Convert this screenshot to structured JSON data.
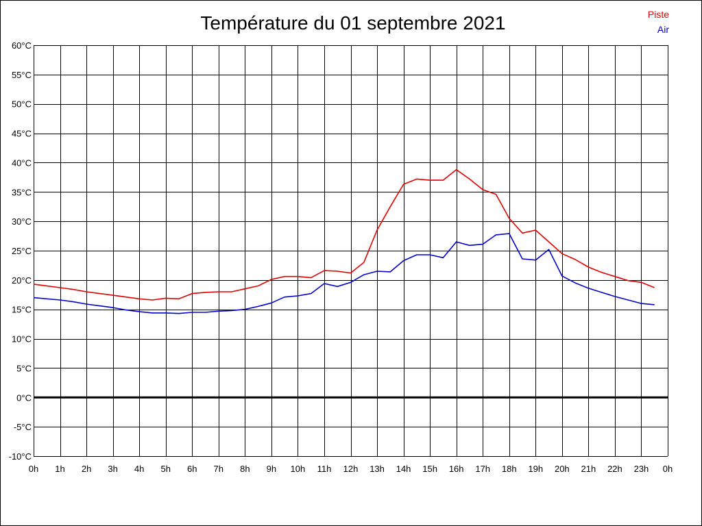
{
  "chart_data": {
    "type": "line",
    "title": "Température du 01 septembre 2021",
    "x_tick_labels": [
      "0h",
      "1h",
      "2h",
      "3h",
      "4h",
      "5h",
      "6h",
      "7h",
      "8h",
      "9h",
      "10h",
      "11h",
      "12h",
      "13h",
      "14h",
      "15h",
      "16h",
      "17h",
      "18h",
      "19h",
      "20h",
      "21h",
      "22h",
      "23h",
      "0h"
    ],
    "y_tick_labels": [
      "-10°C",
      "-5°C",
      "0°C",
      "5°C",
      "10°C",
      "15°C",
      "20°C",
      "25°C",
      "30°C",
      "35°C",
      "40°C",
      "45°C",
      "50°C",
      "55°C",
      "60°C"
    ],
    "xlim": [
      0,
      24
    ],
    "ylim": [
      -10,
      60
    ],
    "grid": true,
    "legend_position": "top-right",
    "series": [
      {
        "name": "Piste",
        "color": "#dd0000",
        "x": [
          0,
          0.5,
          1,
          1.5,
          2,
          2.5,
          3,
          3.5,
          4,
          4.5,
          5,
          5.5,
          6,
          6.5,
          7,
          7.5,
          8,
          8.5,
          9,
          9.5,
          10,
          10.5,
          11,
          11.5,
          12,
          12.5,
          13,
          13.5,
          14,
          14.5,
          15,
          15.5,
          16,
          16.5,
          17,
          17.5,
          18,
          18.5,
          19,
          19.5,
          20,
          20.5,
          21,
          21.5,
          22,
          22.5,
          23,
          23.5
        ],
        "values": [
          19.3,
          19.0,
          18.7,
          18.4,
          18.0,
          17.7,
          17.4,
          17.1,
          16.8,
          16.6,
          16.9,
          16.8,
          17.7,
          17.9,
          18.0,
          18.0,
          18.5,
          19.0,
          20.1,
          20.6,
          20.6,
          20.4,
          21.6,
          21.5,
          21.2,
          23.0,
          28.5,
          32.5,
          36.3,
          37.2,
          37.0,
          37.0,
          38.8,
          37.2,
          35.4,
          34.6,
          30.5,
          28.0,
          28.5,
          26.5,
          24.5,
          23.5,
          22.2,
          21.3,
          20.6,
          19.9,
          19.6,
          18.7
        ]
      },
      {
        "name": "Air",
        "color": "#0000cc",
        "x": [
          0,
          0.5,
          1,
          1.5,
          2,
          2.5,
          3,
          3.5,
          4,
          4.5,
          5,
          5.5,
          6,
          6.5,
          7,
          7.5,
          8,
          8.5,
          9,
          9.5,
          10,
          10.5,
          11,
          11.5,
          12,
          12.5,
          13,
          13.5,
          14,
          14.5,
          15,
          15.5,
          16,
          16.5,
          17,
          17.5,
          18,
          18.5,
          19,
          19.5,
          20,
          20.5,
          21,
          21.5,
          22,
          22.5,
          23,
          23.5
        ],
        "values": [
          17.0,
          16.8,
          16.6,
          16.3,
          15.9,
          15.6,
          15.3,
          14.9,
          14.6,
          14.4,
          14.4,
          14.3,
          14.5,
          14.5,
          14.7,
          14.8,
          15.0,
          15.5,
          16.1,
          17.1,
          17.3,
          17.7,
          19.4,
          18.9,
          19.6,
          20.9,
          21.5,
          21.4,
          23.3,
          24.3,
          24.3,
          23.8,
          26.5,
          25.9,
          26.1,
          27.7,
          27.9,
          23.6,
          23.4,
          25.2,
          20.7,
          19.5,
          18.6,
          17.9,
          17.2,
          16.6,
          16.0,
          15.8
        ]
      }
    ],
    "reference_line_value": 0
  }
}
